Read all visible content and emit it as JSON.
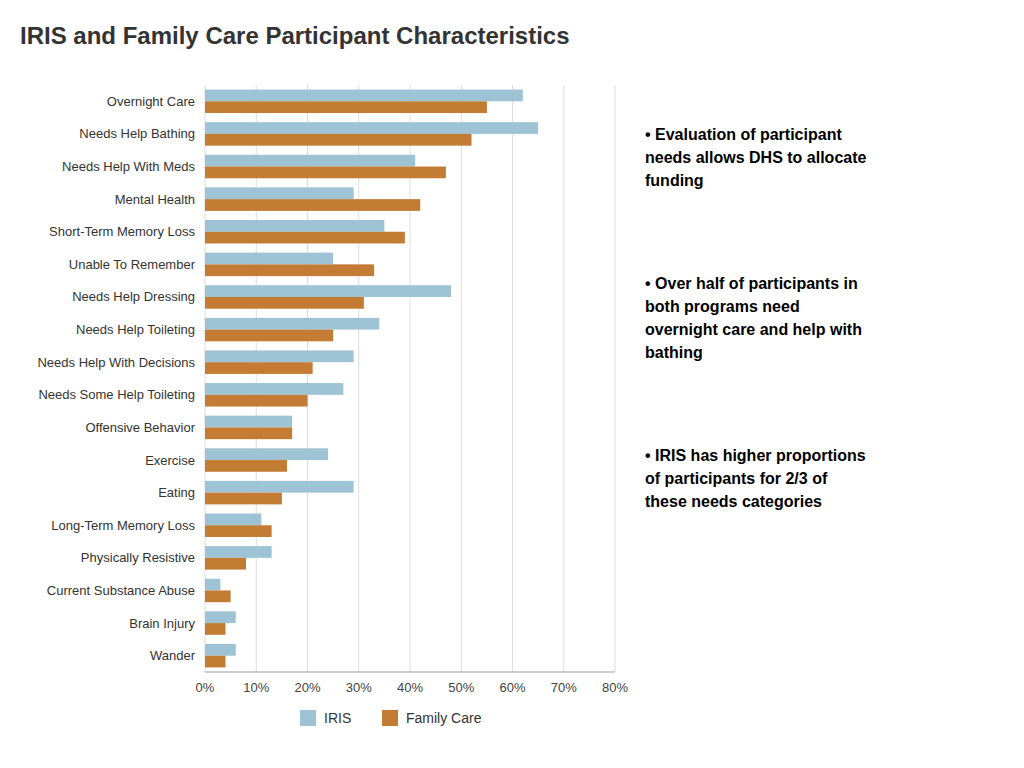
{
  "chart_data": {
    "type": "bar",
    "orientation": "horizontal",
    "title": "IRIS and Family Care Participant Characteristics",
    "categories": [
      "Overnight Care",
      "Needs Help Bathing",
      "Needs Help With Meds",
      "Mental Health",
      "Short-Term Memory Loss",
      "Unable To Remember",
      "Needs Help Dressing",
      "Needs Help Toileting",
      "Needs Help With Decisions",
      "Needs Some Help Toileting",
      "Offensive Behavior",
      "Exercise",
      "Eating",
      "Long-Term Memory Loss",
      "Physically Resistive",
      "Current Substance Abuse",
      "Brain Injury",
      "Wander"
    ],
    "series": [
      {
        "name": "IRIS",
        "color": "#9DC3D4",
        "values": [
          62,
          65,
          41,
          29,
          35,
          25,
          48,
          34,
          29,
          27,
          17,
          24,
          29,
          11,
          13,
          3,
          6,
          6
        ]
      },
      {
        "name": "Family Care",
        "color": "#C47C35",
        "values": [
          55,
          52,
          47,
          42,
          39,
          33,
          31,
          25,
          21,
          20,
          17,
          16,
          15,
          13,
          8,
          5,
          4,
          4
        ]
      }
    ],
    "xlim": [
      0,
      80
    ],
    "xticks": [
      {
        "value": 0,
        "label": "0%"
      },
      {
        "value": 10,
        "label": "10%"
      },
      {
        "value": 20,
        "label": "20%"
      },
      {
        "value": 30,
        "label": "30%"
      },
      {
        "value": 40,
        "label": "40%"
      },
      {
        "value": 50,
        "label": "50%"
      },
      {
        "value": 60,
        "label": "60%"
      },
      {
        "value": 70,
        "label": "70%"
      },
      {
        "value": 80,
        "label": "80%"
      }
    ],
    "grid": true,
    "legend": "bottom",
    "annotations": [
      "• Evaluation of participant\nneeds allows DHS to allocate\nfunding",
      "• Over half of participants in\nboth programs need\novernight care and help with\nbathing",
      "• IRIS has higher proportions\nof participants for 2/3 of\nthese needs categories"
    ]
  }
}
